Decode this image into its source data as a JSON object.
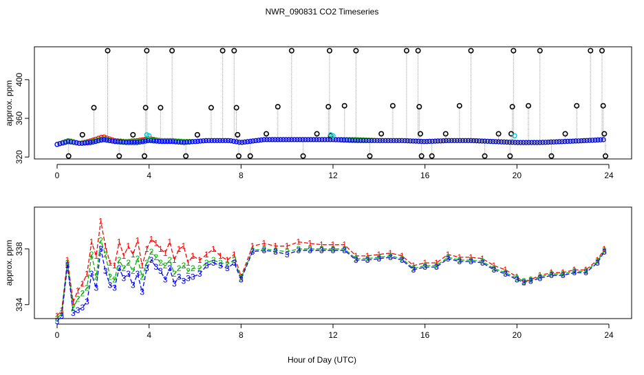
{
  "title": "NWR_090831  CO2 Timeseries",
  "xlabel": "Hour of Day (UTC)",
  "colors": {
    "axis": "#000000",
    "flask": "#000000",
    "series1": "#ff0000",
    "series2": "#00b000",
    "series3": "#0000ff",
    "mean": "#00cccc",
    "guide": "#999999"
  },
  "chart_data": [
    {
      "type": "scatter",
      "panel": "top",
      "ylabel": "approx. ppm",
      "xlim": [
        0,
        24
      ],
      "ylim": [
        318,
        434
      ],
      "xticks": [
        "0",
        "4",
        "8",
        "12",
        "16",
        "20",
        "24"
      ],
      "yticks": [
        "320",
        "360",
        "400"
      ],
      "flask_samples": {
        "name": "flask",
        "x": [
          0.5,
          1.1,
          1.6,
          2.2,
          2.7,
          3.3,
          3.8,
          3.85,
          3.9,
          4.5,
          5.0,
          5.6,
          6.1,
          6.7,
          7.2,
          7.7,
          7.8,
          7.85,
          7.9,
          8.4,
          9.1,
          9.6,
          10.2,
          10.7,
          11.3,
          11.8,
          11.85,
          11.9,
          12.5,
          13.0,
          13.6,
          14.1,
          14.6,
          15.2,
          15.7,
          15.75,
          15.8,
          15.85,
          16.3,
          16.9,
          17.5,
          18.0,
          18.6,
          19.2,
          19.7,
          19.75,
          19.8,
          19.85,
          20.5,
          21.0,
          21.5,
          22.1,
          22.6,
          23.2,
          23.7,
          23.75,
          23.8,
          23.85
        ],
        "y": [
          321,
          343,
          371,
          430,
          321,
          343,
          321,
          371,
          430,
          371,
          430,
          321,
          343,
          371,
          430,
          430,
          371,
          343,
          321,
          321,
          344,
          372,
          430,
          321,
          344,
          372,
          430,
          342,
          373,
          430,
          321,
          344,
          373,
          430,
          430,
          372,
          344,
          321,
          321,
          344,
          373,
          430,
          321,
          344,
          321,
          344,
          372,
          430,
          373,
          430,
          321,
          344,
          373,
          430,
          430,
          373,
          344,
          321
        ]
      },
      "hourly_mean": {
        "name": "mean",
        "x": [
          3.9,
          4.0,
          11.9,
          12.0,
          19.9
        ],
        "y": [
          343,
          342,
          343,
          342,
          342
        ]
      },
      "series": [
        {
          "name": "1",
          "x": [
            0.0,
            0.5,
            1.0,
            1.5,
            2.0,
            2.5,
            3.0,
            3.5,
            4.0,
            4.5,
            5.0,
            5.5,
            6.0,
            6.5,
            7.0,
            7.5,
            8.0,
            9.0,
            10.0,
            11.0,
            12.0,
            13.0,
            14.0,
            15.0,
            16.0,
            17.0,
            18.0,
            19.0,
            20.0,
            21.0,
            22.0,
            23.0,
            23.8
          ],
          "y": [
            333,
            337,
            334,
            337,
            341,
            337,
            336,
            337,
            339,
            337,
            337,
            336,
            336,
            337,
            337,
            337,
            335,
            338,
            338,
            338,
            338,
            338,
            337,
            337,
            336,
            337,
            337,
            336,
            335,
            335,
            336,
            337,
            338
          ]
        },
        {
          "name": "2",
          "x": [
            0.0,
            0.5,
            1.0,
            1.5,
            2.0,
            2.5,
            3.0,
            3.5,
            4.0,
            4.5,
            5.0,
            5.5,
            6.0,
            6.5,
            7.0,
            7.5,
            8.0,
            9.0,
            10.0,
            11.0,
            12.0,
            13.0,
            14.0,
            15.0,
            16.0,
            17.0,
            18.0,
            19.0,
            20.0,
            21.0,
            22.0,
            23.0,
            23.8
          ],
          "y": [
            333,
            337,
            334,
            336,
            339,
            336,
            336,
            336,
            338,
            337,
            337,
            336,
            336,
            337,
            337,
            337,
            335,
            338,
            338,
            338,
            338,
            338,
            337,
            337,
            336,
            337,
            337,
            336,
            335,
            335,
            336,
            337,
            338
          ]
        },
        {
          "name": "3",
          "x": [
            0.0,
            0.5,
            1.0,
            1.5,
            2.0,
            2.5,
            3.0,
            3.5,
            4.0,
            4.5,
            5.0,
            5.5,
            6.0,
            6.5,
            7.0,
            7.5,
            8.0,
            9.0,
            10.0,
            11.0,
            12.0,
            13.0,
            14.0,
            15.0,
            16.0,
            17.0,
            18.0,
            19.0,
            20.0,
            21.0,
            22.0,
            23.0,
            23.8
          ],
          "y": [
            333,
            336,
            334,
            335,
            338,
            336,
            335,
            335,
            337,
            336,
            336,
            335,
            336,
            337,
            337,
            337,
            335,
            338,
            338,
            338,
            338,
            337,
            337,
            337,
            336,
            337,
            337,
            336,
            335,
            335,
            336,
            337,
            338
          ]
        }
      ]
    },
    {
      "type": "line",
      "panel": "bottom",
      "ylabel": "approx. ppm",
      "xlim": [
        0,
        24
      ],
      "ylim": [
        333,
        341
      ],
      "xticks": [
        "0",
        "4",
        "8",
        "12",
        "16",
        "20",
        "24"
      ],
      "yticks": [
        "334",
        "338"
      ],
      "series": [
        {
          "name": "1",
          "marker": "1",
          "x": [
            0.0,
            0.2,
            0.45,
            0.7,
            0.9,
            1.1,
            1.3,
            1.5,
            1.7,
            1.9,
            2.1,
            2.3,
            2.5,
            2.7,
            2.9,
            3.1,
            3.3,
            3.5,
            3.7,
            3.9,
            4.1,
            4.3,
            4.5,
            4.7,
            4.9,
            5.1,
            5.3,
            5.5,
            5.7,
            5.9,
            6.2,
            6.5,
            6.8,
            7.1,
            7.4,
            7.7,
            8.0,
            8.5,
            9.0,
            9.5,
            10.0,
            10.5,
            11.0,
            11.5,
            12.0,
            12.5,
            13.0,
            13.5,
            14.0,
            14.5,
            15.0,
            15.5,
            16.0,
            16.5,
            17.0,
            17.5,
            18.0,
            18.5,
            19.0,
            19.5,
            20.0,
            20.3,
            20.6,
            21.0,
            21.5,
            22.0,
            22.5,
            23.0,
            23.5,
            23.8
          ],
          "y": [
            333.2,
            333.6,
            337.2,
            334.2,
            335.0,
            335.5,
            336.2,
            338.5,
            337.5,
            340.0,
            338.2,
            337.0,
            336.8,
            338.5,
            337.5,
            338.2,
            337.6,
            338.6,
            336.8,
            338.0,
            338.7,
            338.4,
            338.0,
            337.7,
            338.5,
            337.2,
            338.0,
            338.2,
            337.0,
            337.5,
            337.2,
            337.6,
            338.0,
            337.5,
            337.2,
            337.6,
            336.0,
            338.2,
            338.4,
            338.2,
            338.2,
            338.5,
            338.4,
            338.3,
            338.3,
            338.3,
            337.5,
            337.5,
            337.6,
            337.7,
            337.5,
            336.8,
            337.0,
            337.0,
            337.6,
            337.4,
            337.4,
            337.3,
            336.8,
            336.5,
            336.0,
            335.6,
            335.8,
            336.1,
            336.3,
            336.3,
            336.5,
            336.5,
            337.2,
            338.0
          ]
        },
        {
          "name": "2",
          "marker": "2",
          "x": [
            0.0,
            0.2,
            0.45,
            0.7,
            0.9,
            1.1,
            1.3,
            1.5,
            1.7,
            1.9,
            2.1,
            2.3,
            2.5,
            2.7,
            2.9,
            3.1,
            3.3,
            3.5,
            3.7,
            3.9,
            4.1,
            4.3,
            4.5,
            4.7,
            4.9,
            5.1,
            5.3,
            5.5,
            5.7,
            5.9,
            6.2,
            6.5,
            6.8,
            7.1,
            7.4,
            7.7,
            8.0,
            8.5,
            9.0,
            9.5,
            10.0,
            10.5,
            11.0,
            11.5,
            12.0,
            12.5,
            13.0,
            13.5,
            14.0,
            14.5,
            15.0,
            15.5,
            16.0,
            16.5,
            17.0,
            17.5,
            18.0,
            18.5,
            19.0,
            19.5,
            20.0,
            20.3,
            20.6,
            21.0,
            21.5,
            22.0,
            22.5,
            23.0,
            23.5,
            23.8
          ],
          "y": [
            333.0,
            333.4,
            337.0,
            333.8,
            334.4,
            334.8,
            335.2,
            337.6,
            336.0,
            338.6,
            337.6,
            336.0,
            335.8,
            337.2,
            336.6,
            337.0,
            336.4,
            337.3,
            336.0,
            337.0,
            337.8,
            337.4,
            337.0,
            336.8,
            337.2,
            336.2,
            336.6,
            336.8,
            336.4,
            336.6,
            336.6,
            337.0,
            337.2,
            337.0,
            336.9,
            337.2,
            335.9,
            337.9,
            338.0,
            337.9,
            337.8,
            338.0,
            338.0,
            338.0,
            338.0,
            338.0,
            337.3,
            337.3,
            337.4,
            337.5,
            337.3,
            336.6,
            336.8,
            336.8,
            337.4,
            337.2,
            337.2,
            337.1,
            336.6,
            336.3,
            335.9,
            335.7,
            335.8,
            336.0,
            336.2,
            336.2,
            336.4,
            336.4,
            337.1,
            337.9
          ]
        },
        {
          "name": "3",
          "marker": "3",
          "x": [
            0.0,
            0.2,
            0.45,
            0.7,
            0.9,
            1.1,
            1.3,
            1.5,
            1.7,
            1.9,
            2.1,
            2.3,
            2.5,
            2.7,
            2.9,
            3.1,
            3.3,
            3.5,
            3.7,
            3.9,
            4.1,
            4.3,
            4.5,
            4.7,
            4.9,
            5.1,
            5.3,
            5.5,
            5.7,
            5.9,
            6.2,
            6.5,
            6.8,
            7.1,
            7.4,
            7.7,
            8.0,
            8.5,
            9.0,
            9.5,
            10.0,
            10.5,
            11.0,
            11.5,
            12.0,
            12.5,
            13.0,
            13.5,
            14.0,
            14.5,
            15.0,
            15.5,
            16.0,
            16.5,
            17.0,
            17.5,
            18.0,
            18.5,
            19.0,
            19.5,
            20.0,
            20.3,
            20.6,
            21.0,
            21.5,
            22.0,
            22.5,
            23.0,
            23.5,
            23.8
          ],
          "y": [
            332.8,
            333.2,
            336.8,
            333.4,
            333.6,
            333.8,
            334.2,
            336.2,
            335.2,
            338.0,
            336.4,
            335.4,
            335.2,
            336.6,
            335.9,
            336.2,
            335.4,
            336.2,
            334.9,
            336.6,
            337.2,
            336.7,
            336.4,
            335.8,
            336.6,
            335.5,
            336.0,
            335.7,
            335.9,
            336.0,
            336.2,
            336.8,
            337.0,
            336.8,
            336.6,
            337.0,
            335.8,
            337.8,
            337.9,
            337.8,
            337.6,
            337.9,
            337.9,
            337.9,
            337.9,
            337.9,
            337.2,
            337.2,
            337.3,
            337.4,
            337.2,
            336.5,
            336.7,
            336.7,
            337.3,
            337.1,
            337.1,
            337.0,
            336.5,
            336.2,
            335.8,
            335.6,
            335.7,
            335.9,
            336.1,
            336.1,
            336.3,
            336.3,
            337.0,
            337.8
          ]
        }
      ]
    }
  ]
}
